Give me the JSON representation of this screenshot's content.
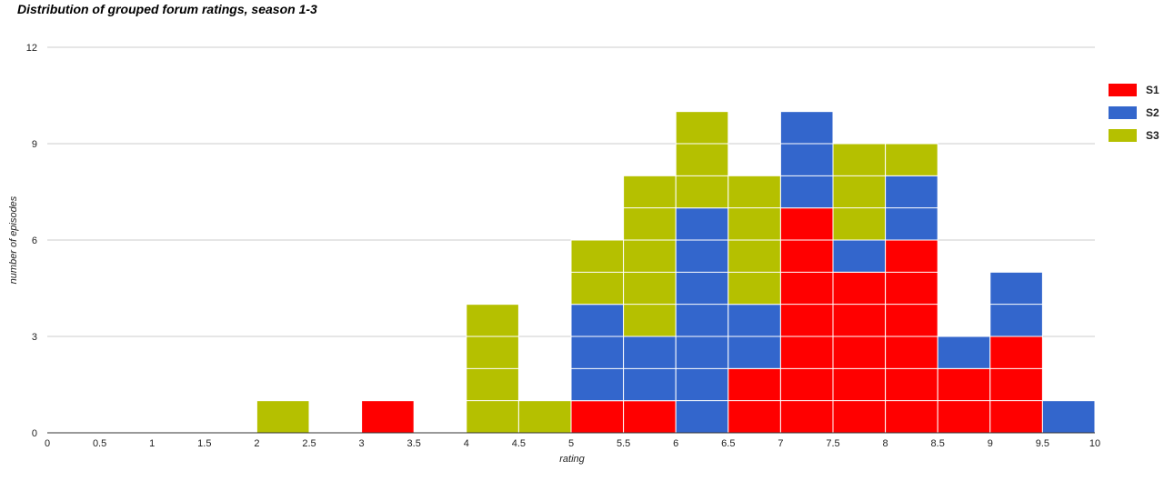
{
  "chart_data": {
    "type": "bar",
    "stacked": true,
    "title": "Distribution of grouped forum ratings, season 1-3",
    "xlabel": "rating",
    "ylabel": "number of episodes",
    "xlim": [
      0,
      10
    ],
    "ylim": [
      0,
      12
    ],
    "x_ticks": [
      "0",
      "0.5",
      "1",
      "1.5",
      "2",
      "2.5",
      "3",
      "3.5",
      "4",
      "4.5",
      "5",
      "5.5",
      "6",
      "6.5",
      "7",
      "7.5",
      "8",
      "8.5",
      "9",
      "9.5",
      "10"
    ],
    "y_ticks": [
      "0",
      "3",
      "6",
      "9",
      "12"
    ],
    "bin_width": 0.5,
    "categories": [
      0,
      0.5,
      1,
      1.5,
      2,
      2.5,
      3,
      3.5,
      4,
      4.5,
      5,
      5.5,
      6,
      6.5,
      7,
      7.5,
      8,
      8.5,
      9,
      9.5
    ],
    "grid": true,
    "legend_position": "right",
    "series": [
      {
        "name": "S1",
        "color": "#ff0000",
        "values": [
          0,
          0,
          0,
          0,
          0,
          0,
          1,
          0,
          0,
          0,
          1,
          1,
          0,
          2,
          7,
          5,
          6,
          2,
          3,
          0
        ]
      },
      {
        "name": "S2",
        "color": "#3366cc",
        "values": [
          0,
          0,
          0,
          0,
          0,
          0,
          0,
          0,
          0,
          0,
          3,
          2,
          7,
          2,
          3,
          1,
          2,
          1,
          2,
          1
        ]
      },
      {
        "name": "S3",
        "color": "#b5c000",
        "values": [
          0,
          0,
          0,
          0,
          1,
          0,
          0,
          0,
          4,
          1,
          2,
          5,
          3,
          4,
          0,
          3,
          1,
          0,
          0,
          0
        ]
      }
    ]
  }
}
